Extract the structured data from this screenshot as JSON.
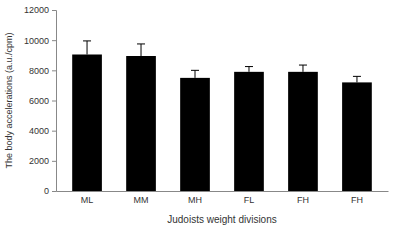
{
  "chart_data": {
    "type": "bar",
    "x_label": "Judoists weight divisions",
    "y_label": "The body accelerations (a.u./cpm)",
    "categories": [
      "ML",
      "MM",
      "MH",
      "FL",
      "FH",
      "FH"
    ],
    "values": [
      9050,
      8950,
      7500,
      7900,
      7900,
      7200
    ],
    "errors": [
      900,
      800,
      500,
      350,
      450,
      400
    ],
    "color": "#000000",
    "ylim": [
      0,
      12000
    ],
    "yticks": [
      0,
      2000,
      4000,
      6000,
      8000,
      10000,
      12000
    ],
    "grid": false
  }
}
